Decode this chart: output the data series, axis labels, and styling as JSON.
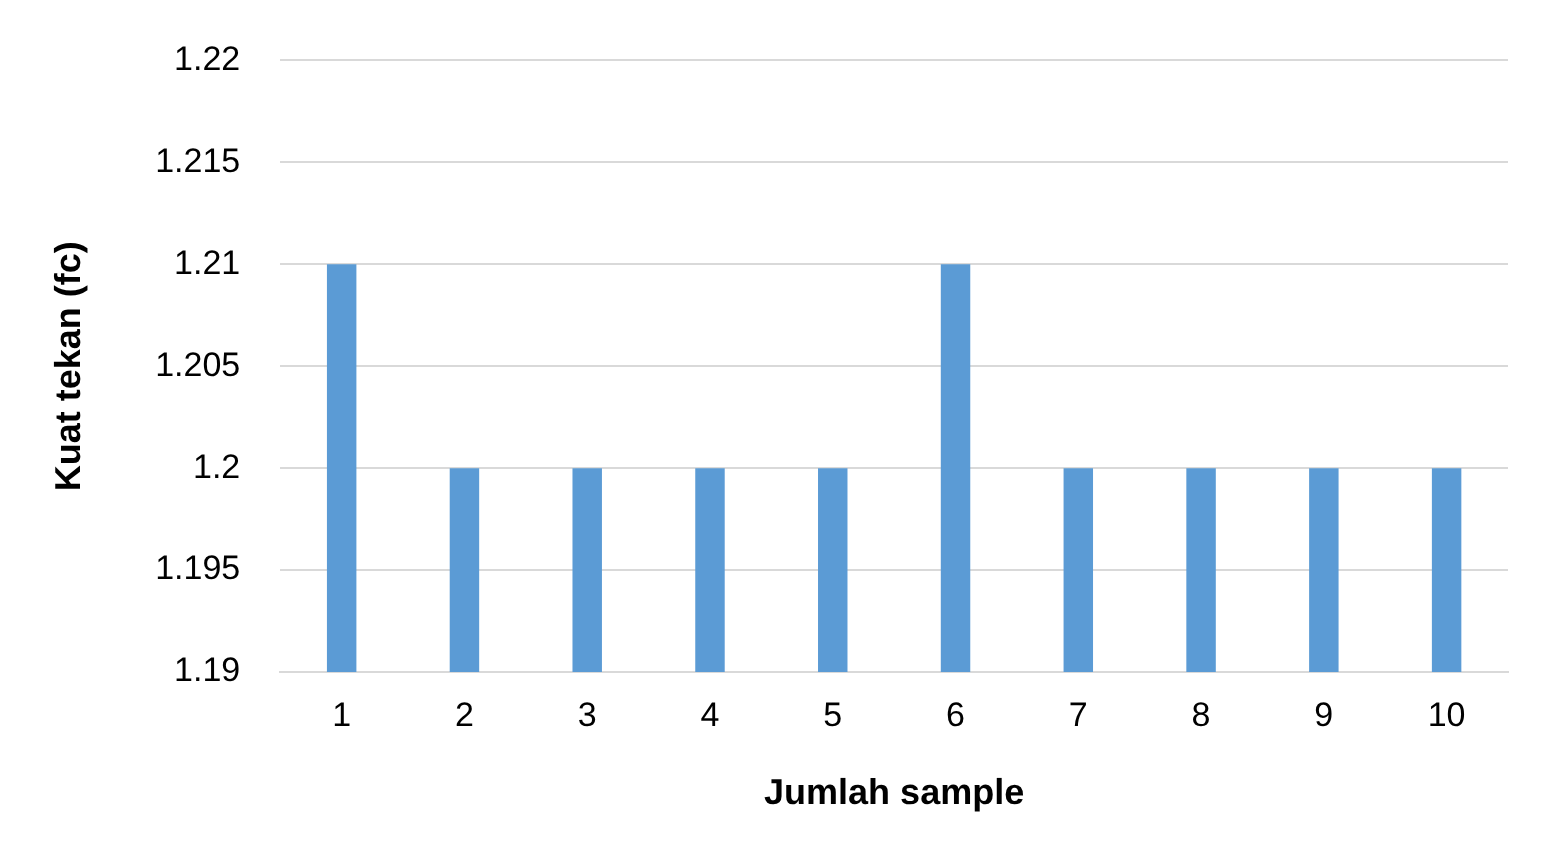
{
  "chart_data": {
    "type": "bar",
    "xlabel": "Jumlah sample",
    "ylabel": "Kuat tekan (fc)",
    "categories": [
      "1",
      "2",
      "3",
      "4",
      "5",
      "6",
      "7",
      "8",
      "9",
      "10"
    ],
    "values": [
      1.21,
      1.2,
      1.2,
      1.2,
      1.2,
      1.21,
      1.2,
      1.2,
      1.2,
      1.2
    ],
    "color": "#5b9bd5",
    "ylim": [
      1.19,
      1.22
    ],
    "yticks": [
      1.19,
      1.195,
      1.2,
      1.205,
      1.21,
      1.215,
      1.22
    ],
    "grid": "y",
    "legend": false
  }
}
